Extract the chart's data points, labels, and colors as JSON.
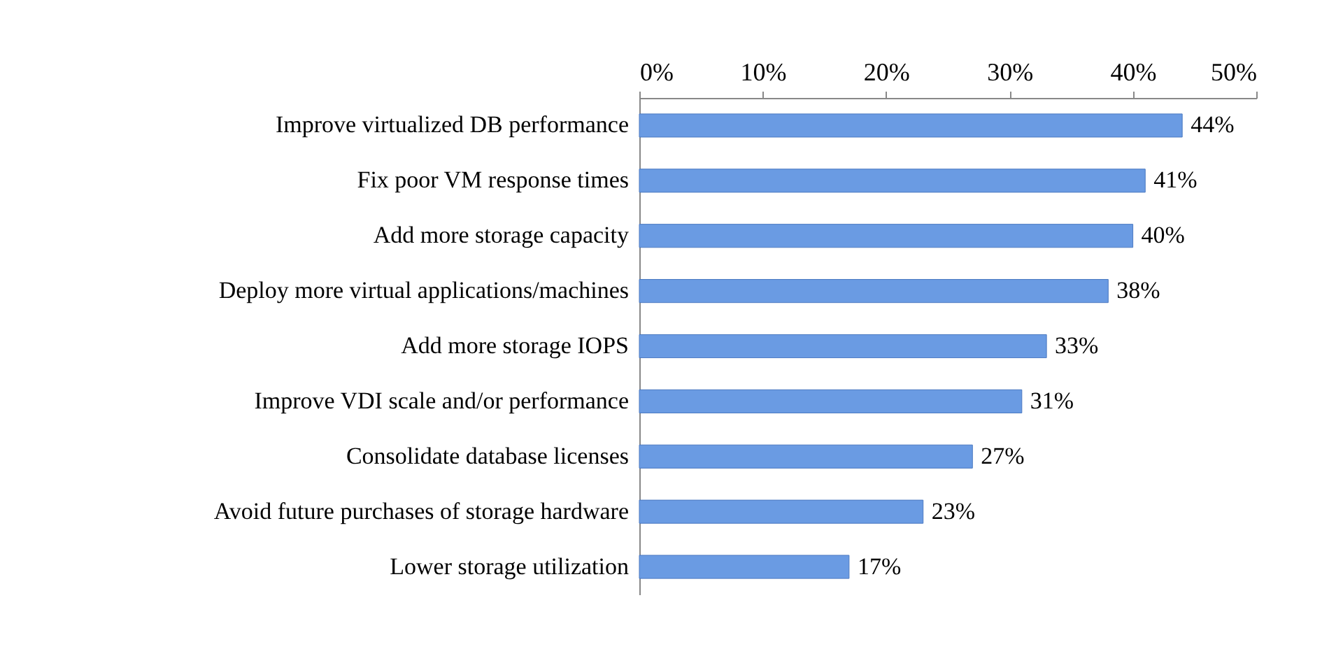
{
  "chart_data": {
    "type": "bar",
    "orientation": "horizontal",
    "categories": [
      "Improve virtualized DB performance",
      "Fix poor VM response times",
      "Add more storage capacity",
      "Deploy more virtual applications/machines",
      "Add more storage IOPS",
      "Improve VDI scale and/or performance",
      "Consolidate database licenses",
      "Avoid future purchases of storage hardware",
      "Lower storage utilization"
    ],
    "values": [
      44,
      41,
      40,
      38,
      33,
      31,
      27,
      23,
      17
    ],
    "color": "#6a9be3",
    "xlim": [
      0,
      50
    ],
    "xticks": [
      {
        "value": 0,
        "label": "0%"
      },
      {
        "value": 10,
        "label": "10%"
      },
      {
        "value": 20,
        "label": "20%"
      },
      {
        "value": 30,
        "label": "30%"
      },
      {
        "value": 40,
        "label": "40%"
      },
      {
        "value": 50,
        "label": "50%"
      }
    ],
    "value_labels": [
      "44%",
      "41%",
      "40%",
      "38%",
      "33%",
      "31%",
      "27%",
      "23%",
      "17%"
    ]
  }
}
